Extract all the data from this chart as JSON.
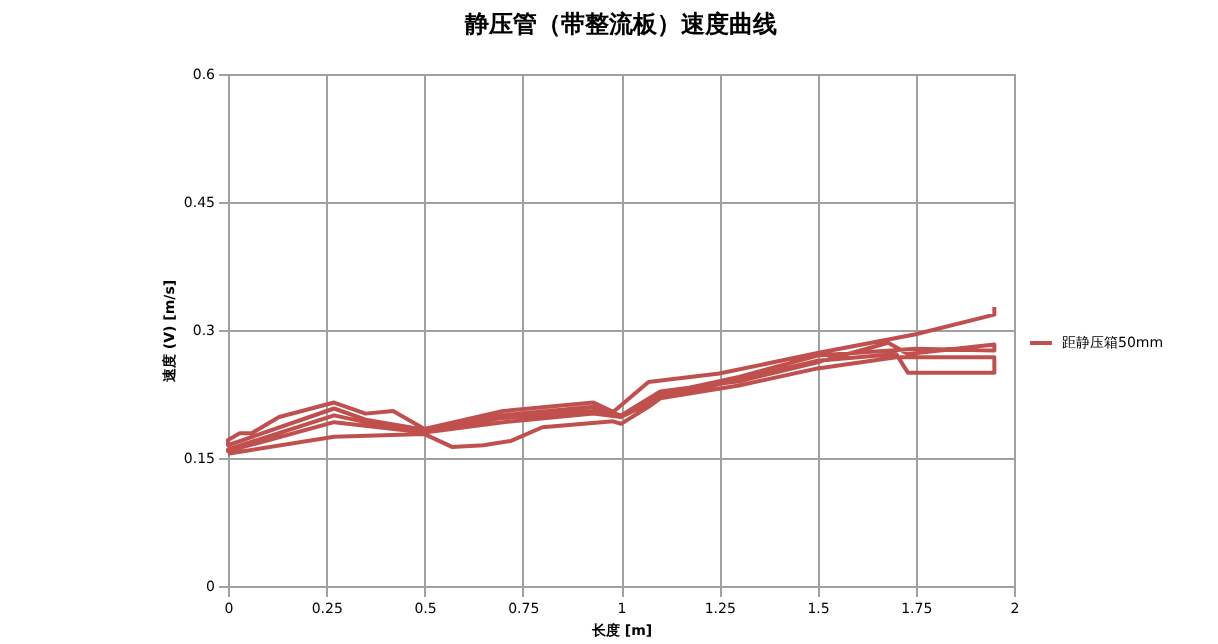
{
  "chart_data": {
    "type": "line",
    "title": "静压管（带整流板）速度曲线",
    "xlabel": "长度 [m]",
    "ylabel": "速度 (V) [m/s]",
    "x": [
      1.95,
      1.95,
      1.75,
      1.5,
      1.25,
      1.07,
      0.98,
      0.93,
      0.7,
      0.5,
      0.42,
      0.35,
      0.27,
      0.13,
      0.06,
      0.03,
      0,
      0,
      0.27,
      0.35,
      0.5,
      0.7,
      0.93,
      1.0,
      1.1,
      1.3,
      1.5,
      1.68,
      1.73,
      1.95,
      1.95,
      1.75,
      1.5,
      1.3,
      1.1,
      1.0,
      0.93,
      0.7,
      0.5,
      0.42,
      0.27,
      0,
      0,
      0.27,
      0.5,
      0.7,
      0.93,
      1.0,
      1.1,
      1.3,
      1.5,
      1.7,
      1.95,
      1.95,
      1.73,
      1.7,
      1.5,
      1.1,
      1.07,
      1.0,
      0.98,
      0.8,
      0.72,
      0.65,
      0.57,
      0.5,
      0.27,
      0
    ],
    "series": [
      {
        "name": "距静压箱50mm",
        "color": "#c0504d",
        "values": [
          0.327,
          0.318,
          0.295,
          0.273,
          0.249,
          0.239,
          0.204,
          0.215,
          0.205,
          0.184,
          0.205,
          0.202,
          0.215,
          0.198,
          0.179,
          0.179,
          0.171,
          0.165,
          0.208,
          0.195,
          0.183,
          0.2,
          0.21,
          0.2,
          0.228,
          0.24,
          0.262,
          0.285,
          0.272,
          0.283,
          0.276,
          0.278,
          0.27,
          0.245,
          0.225,
          0.2,
          0.205,
          0.197,
          0.182,
          0.185,
          0.2,
          0.16,
          0.158,
          0.192,
          0.18,
          0.192,
          0.202,
          0.198,
          0.22,
          0.235,
          0.255,
          0.268,
          0.268,
          0.25,
          0.25,
          0.272,
          0.264,
          0.22,
          0.21,
          0.19,
          0.193,
          0.186,
          0.17,
          0.165,
          0.163,
          0.178,
          0.175,
          0.155
        ]
      }
    ],
    "xlim": [
      0,
      2
    ],
    "xticks": [
      0,
      0.25,
      0.5,
      0.75,
      1,
      1.25,
      1.5,
      1.75,
      2
    ],
    "ylim": [
      0,
      0.6
    ],
    "yticks": [
      0,
      0.15,
      0.3,
      0.45,
      0.6
    ],
    "grid": true,
    "legend": "right"
  }
}
